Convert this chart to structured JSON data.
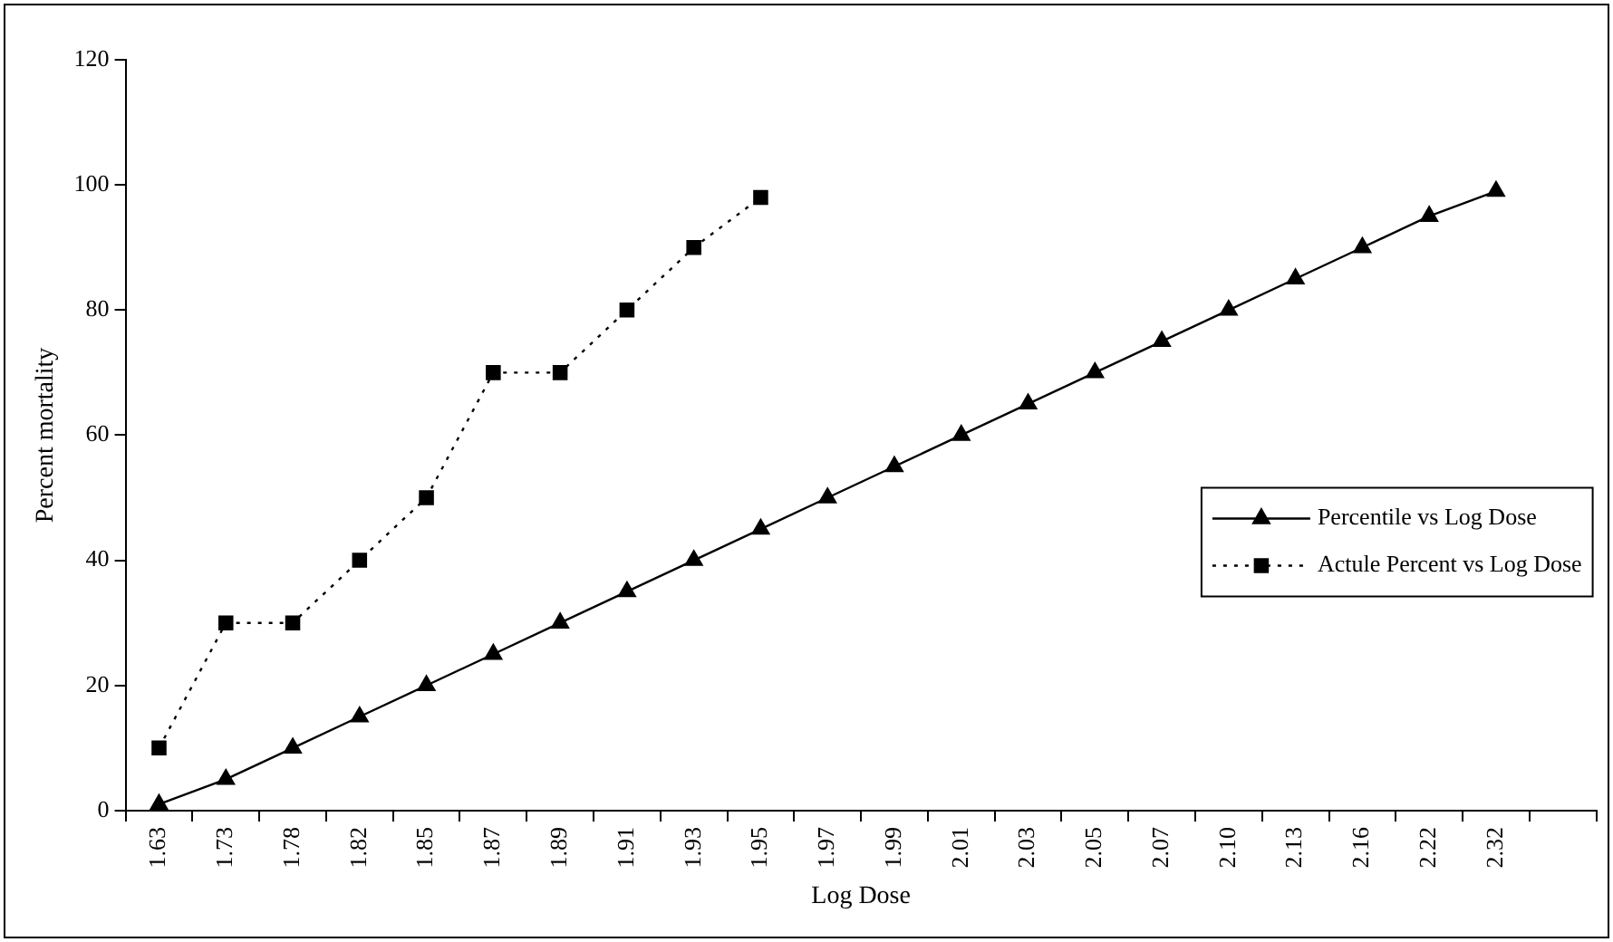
{
  "chart_data": {
    "type": "line",
    "xlabel": "Log Dose",
    "ylabel": "Percent mortality",
    "categories": [
      "1.63",
      "1.73",
      "1.78",
      "1.82",
      "1.85",
      "1.87",
      "1.89",
      "1.91",
      "1.93",
      "1.95",
      "1.97",
      "1.99",
      "2.01",
      "2.03",
      "2.05",
      "2.07",
      "2.10",
      "2.13",
      "2.16",
      "2.22",
      "2.32",
      null
    ],
    "series": [
      {
        "name": "Percentile vs Log Dose",
        "color": "#000000",
        "marker": "triangle",
        "line_style": "solid",
        "values": [
          1,
          5,
          10,
          15,
          20,
          25,
          30,
          35,
          40,
          45,
          50,
          55,
          60,
          65,
          70,
          75,
          80,
          85,
          90,
          95,
          99,
          null
        ]
      },
      {
        "name": "Actule Percent vs Log Dose",
        "color": "#000000",
        "marker": "square",
        "line_style": "dotted",
        "values": [
          10,
          30,
          30,
          40,
          50,
          70,
          70,
          80,
          90,
          98,
          null,
          null,
          null,
          null,
          null,
          null,
          null,
          null,
          null,
          null,
          null,
          null
        ]
      }
    ],
    "ylim": [
      0,
      120
    ],
    "yticks": [
      0,
      20,
      40,
      60,
      80,
      100,
      120
    ],
    "grid": false,
    "legend": "right"
  }
}
